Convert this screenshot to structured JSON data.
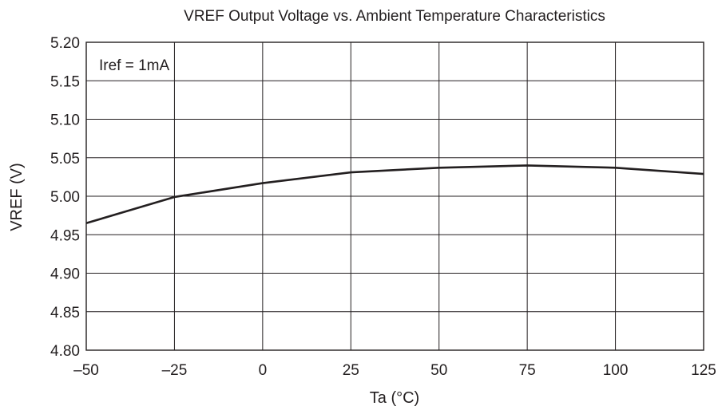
{
  "chart_data": {
    "type": "line",
    "title": "VREF Output Voltage vs. Ambient Temperature Characteristics",
    "xlabel": "Ta  (°C)",
    "ylabel": "VREF  (V)",
    "xlim": [
      -50,
      125
    ],
    "ylim": [
      4.8,
      5.2
    ],
    "xticks": [
      -50,
      -25,
      0,
      25,
      50,
      75,
      100,
      125
    ],
    "xtick_labels": [
      "–50",
      "–25",
      "0",
      "25",
      "50",
      "75",
      "100",
      "125"
    ],
    "yticks": [
      4.8,
      4.85,
      4.9,
      4.95,
      5.0,
      5.05,
      5.1,
      5.15,
      5.2
    ],
    "ytick_labels": [
      "4.80",
      "4.85",
      "4.90",
      "4.95",
      "5.00",
      "5.05",
      "5.10",
      "5.15",
      "5.20"
    ],
    "grid": true,
    "annotation": "Iref = 1mA",
    "series": [
      {
        "x": [
          -50,
          -25,
          0,
          25,
          50,
          75,
          100,
          125
        ],
        "y": [
          4.965,
          4.999,
          5.017,
          5.031,
          5.037,
          5.04,
          5.037,
          5.029
        ]
      }
    ]
  }
}
